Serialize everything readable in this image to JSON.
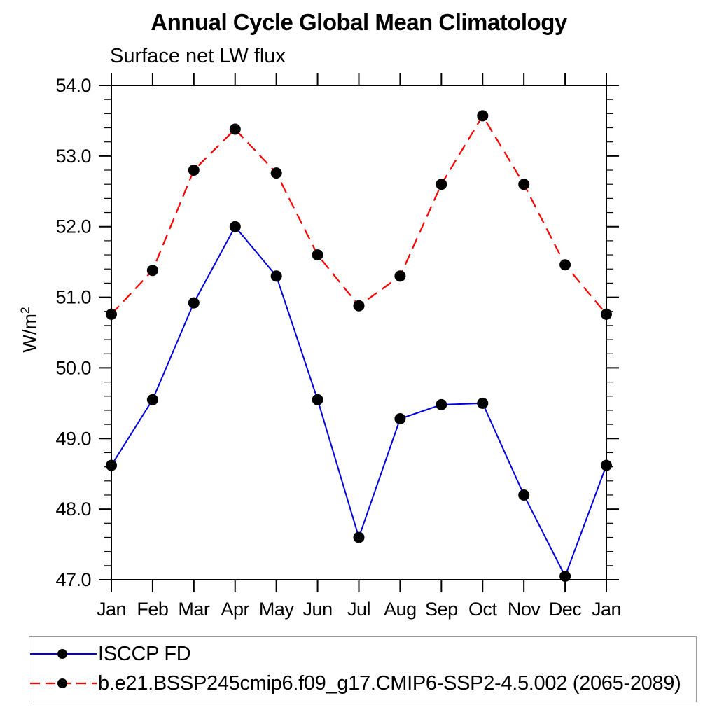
{
  "chart_data": {
    "type": "line",
    "title": "Annual Cycle Global Mean Climatology",
    "subtitle": "Surface net LW flux",
    "ylabel_base": "W/m",
    "ylabel_exponent": "2",
    "categories": [
      "Jan",
      "Feb",
      "Mar",
      "Apr",
      "May",
      "Jun",
      "Jul",
      "Aug",
      "Sep",
      "Oct",
      "Nov",
      "Dec",
      "Jan"
    ],
    "ylim": [
      47.0,
      54.0
    ],
    "ytick_step": 1.0,
    "yminor_step": 0.2,
    "ytick_decimals": 1,
    "grid": false,
    "legend_position": "bottom-left-box",
    "axis_color": "#000000",
    "marker": "filled-circle",
    "marker_color": "#000000",
    "series": [
      {
        "name": "ISCCP FD",
        "color": "#0000dd",
        "line_style": "solid",
        "values": [
          48.62,
          49.55,
          50.92,
          52.0,
          51.3,
          49.55,
          47.6,
          49.28,
          49.48,
          49.5,
          48.2,
          47.05,
          48.62
        ]
      },
      {
        "name": "b.e21.BSSP245cmip6.f09_g17.CMIP6-SSP2-4.5.002 (2065-2089)",
        "color": "#ff0000",
        "line_style": "dashed",
        "values": [
          50.76,
          51.38,
          52.8,
          53.38,
          52.76,
          51.6,
          50.88,
          51.3,
          52.6,
          53.57,
          52.6,
          51.46,
          50.76
        ]
      }
    ]
  }
}
